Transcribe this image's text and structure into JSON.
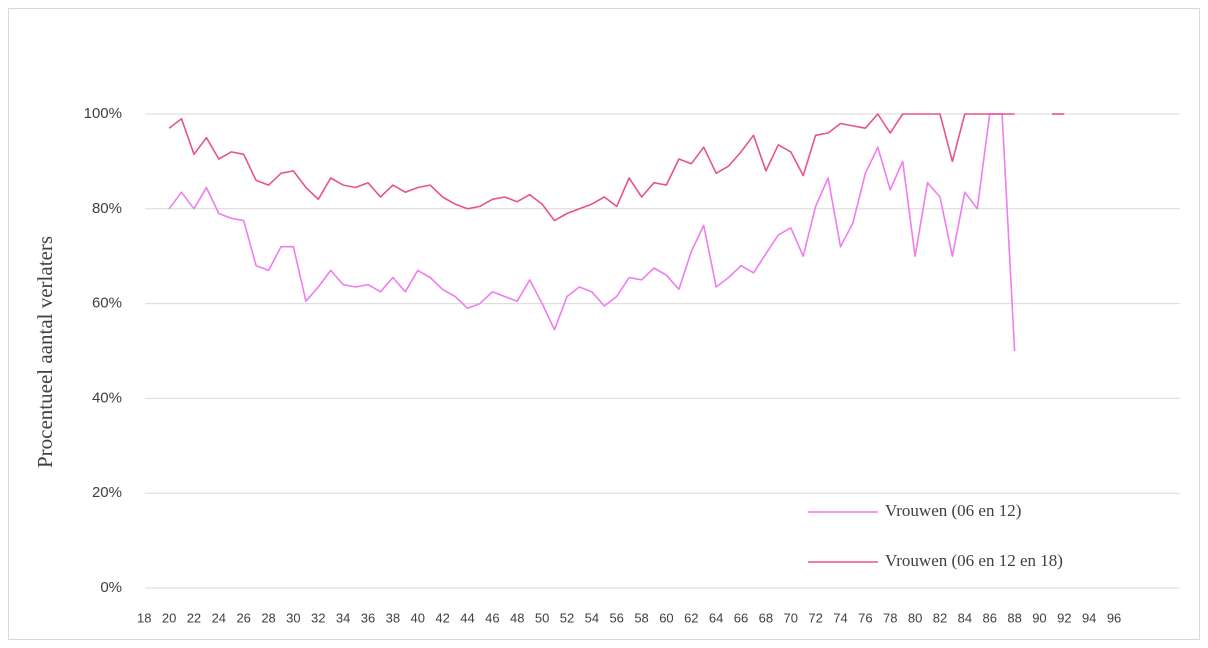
{
  "chart_data": {
    "type": "line",
    "y_label": "Procentueel aantal verlaters",
    "categories": [
      "18",
      null,
      "20",
      null,
      "22",
      null,
      "24",
      null,
      "26",
      null,
      "28",
      null,
      "30",
      null,
      "32",
      null,
      "34",
      null,
      "36",
      null,
      "38",
      null,
      "40",
      null,
      "42",
      null,
      "44",
      null,
      "46",
      null,
      "48",
      null,
      "50",
      null,
      "52",
      null,
      "54",
      null,
      "56",
      null,
      "58",
      null,
      "60",
      null,
      "62",
      null,
      "64",
      null,
      "66",
      null,
      "68",
      null,
      "70",
      null,
      "72",
      null,
      "74",
      null,
      "76",
      null,
      "78",
      null,
      "80",
      null,
      "82",
      null,
      "84",
      null,
      "86",
      null,
      "88",
      null,
      "90",
      null,
      "92",
      null,
      "94",
      null,
      "96",
      null,
      null,
      null,
      null
    ],
    "series": [
      {
        "name": "Vrouwen (06 en 12)",
        "color": "#f07cf0",
        "values": [
          null,
          null,
          80,
          83.5,
          80,
          84.5,
          79,
          78,
          77.5,
          68,
          67,
          72,
          72,
          60.5,
          63.5,
          67,
          64,
          63.5,
          64,
          62.5,
          65.5,
          62.5,
          67,
          65.5,
          63,
          61.5,
          59,
          60,
          62.5,
          61.5,
          60.5,
          65,
          60,
          54.5,
          61.5,
          63.5,
          62.5,
          59.5,
          61.5,
          65.5,
          65,
          67.5,
          66,
          63,
          71,
          76.5,
          63.5,
          65.5,
          68,
          66.5,
          70.5,
          74.5,
          76,
          70,
          80.5,
          86.5,
          72,
          77,
          87.5,
          93,
          84,
          90,
          70,
          85.5,
          82.5,
          70,
          83.5,
          80,
          100,
          100,
          50,
          null,
          null,
          null,
          null,
          null,
          null,
          null,
          null,
          null,
          null,
          null,
          null
        ]
      },
      {
        "name": "Vrouwen (06 en 12 en 18)",
        "color": "#e8557f",
        "values": [
          null,
          null,
          97,
          99,
          91.5,
          95,
          90.5,
          92,
          91.5,
          86,
          85,
          87.5,
          88,
          84.5,
          82,
          86.5,
          85,
          84.5,
          85.5,
          82.5,
          85,
          83.5,
          84.5,
          85,
          82.5,
          81,
          80,
          80.5,
          82,
          82.5,
          81.5,
          83,
          81,
          77.5,
          79,
          80,
          81,
          82.5,
          80.5,
          86.5,
          82.5,
          85.5,
          85,
          90.5,
          89.5,
          93,
          87.5,
          89,
          92,
          95.5,
          88,
          93.5,
          92,
          87,
          95.5,
          96,
          98,
          97.5,
          97,
          100,
          96,
          100,
          100,
          100,
          100,
          90,
          100,
          100,
          100,
          100,
          100,
          null,
          null,
          100,
          100,
          null,
          null,
          null,
          null,
          null,
          null,
          null,
          null
        ]
      }
    ],
    "ylim": [
      0,
      100
    ],
    "yticks": [
      {
        "value": 0,
        "label": "0%"
      },
      {
        "value": 20,
        "label": "20%"
      },
      {
        "value": 40,
        "label": "40%"
      },
      {
        "value": 60,
        "label": "60%"
      },
      {
        "value": 80,
        "label": "80%"
      },
      {
        "value": 100,
        "label": "100%"
      }
    ],
    "grid": true,
    "legend": "bottom-right"
  }
}
